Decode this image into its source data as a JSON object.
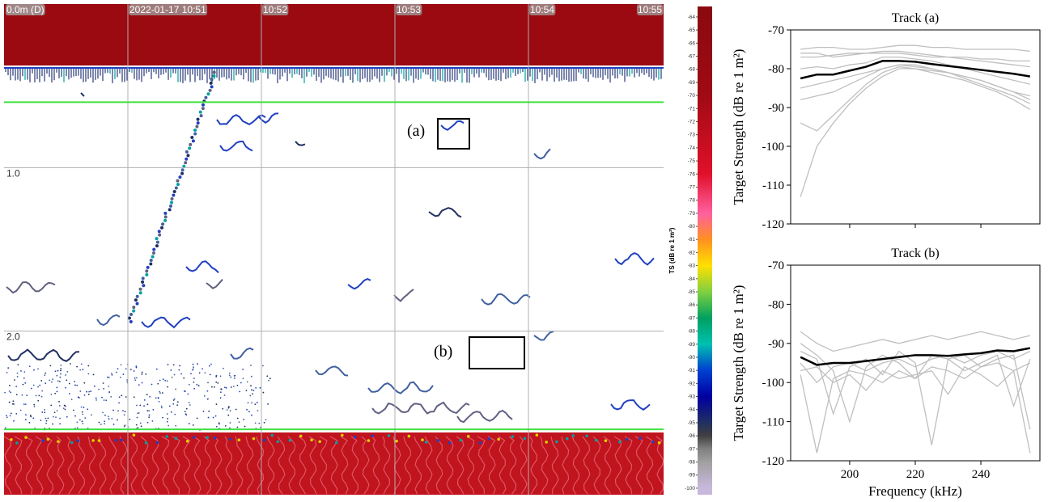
{
  "chart_data": [
    {
      "type": "echogram",
      "depth_ticks": [
        {
          "value": 0,
          "label": "0.0m (D)"
        },
        {
          "value": 1,
          "label": "1.0"
        },
        {
          "value": 2,
          "label": "2.0"
        }
      ],
      "ylim": [
        0,
        3
      ],
      "time_labels": [
        "2022-01-17 10:51",
        "10:52",
        "10:53",
        "10:54",
        "10:55"
      ],
      "lines": [
        {
          "depth": 0.6,
          "color": "#3ee03e"
        },
        {
          "depth": 2.6,
          "color": "#3ee03e"
        }
      ],
      "annotations": [
        "(a)",
        "(b)"
      ],
      "colorbar": {
        "label": "TS (dB re 1 m²)",
        "lim": [
          -63.2,
          -100.5
        ],
        "ticks": [
          -64,
          -65,
          -66,
          -67,
          -68,
          -69,
          -70,
          -71,
          -72,
          -73,
          -74,
          -75,
          -76,
          -77,
          -78,
          -79,
          -80,
          -81,
          -82,
          -83,
          -84,
          -85,
          -86,
          -87,
          -88,
          -89,
          -90,
          -91,
          -92,
          -93,
          -94,
          -95,
          -96,
          -97,
          -98,
          -99,
          -100
        ],
        "colors": [
          {
            "value": -64,
            "color": "#8b0a10"
          },
          {
            "value": -70,
            "color": "#a00a14"
          },
          {
            "value": -76,
            "color": "#e0102a"
          },
          {
            "value": -79,
            "color": "#ff60a0"
          },
          {
            "value": -81,
            "color": "#ff9020"
          },
          {
            "value": -83,
            "color": "#ffe000"
          },
          {
            "value": -85,
            "color": "#80d040"
          },
          {
            "value": -87,
            "color": "#00a060"
          },
          {
            "value": -89,
            "color": "#00c0b0"
          },
          {
            "value": -91,
            "color": "#0040d0"
          },
          {
            "value": -93,
            "color": "#0000a0"
          },
          {
            "value": -95,
            "color": "#203060"
          },
          {
            "value": -96,
            "color": "#404040"
          },
          {
            "value": -97,
            "color": "#808080"
          },
          {
            "value": -98,
            "color": "#a0a0a0"
          },
          {
            "value": -100,
            "color": "#c8b8dc"
          }
        ]
      }
    },
    {
      "type": "line",
      "title": "Track (a)",
      "ylabel": "Target Strength (dB re 1 m²)",
      "x": [
        185,
        190,
        195,
        200,
        205,
        210,
        215,
        220,
        225,
        230,
        235,
        240,
        245,
        250,
        255
      ],
      "xlim": [
        182,
        258
      ],
      "xticks": [
        200,
        220,
        240
      ],
      "xtick_labels": false,
      "ylim": [
        -120,
        -70
      ],
      "yticks": [
        -70,
        -80,
        -90,
        -100,
        -110,
        -120
      ],
      "series": [
        {
          "color": "#bfbfbf",
          "values": [
            -75,
            -74.5,
            -74.5,
            -75,
            -75,
            -74.5,
            -74,
            -74,
            -74.5,
            -74.5,
            -75,
            -75,
            -75,
            -75,
            -75.5
          ]
        },
        {
          "color": "#bfbfbf",
          "values": [
            -77,
            -77,
            -76.5,
            -76,
            -76,
            -75.5,
            -75.5,
            -76,
            -76.5,
            -77,
            -77.5,
            -78,
            -78.5,
            -79,
            -79.5
          ]
        },
        {
          "color": "#bfbfbf",
          "values": [
            -76,
            -76,
            -77,
            -76.5,
            -76,
            -76,
            -76,
            -76.5,
            -77,
            -77,
            -77,
            -77.5,
            -77.5,
            -78,
            -78
          ]
        },
        {
          "color": "#bfbfbf",
          "values": [
            -80,
            -79.5,
            -80,
            -79,
            -78.5,
            -77,
            -77,
            -77.5,
            -78,
            -79,
            -80,
            -81,
            -82,
            -83,
            -84
          ]
        },
        {
          "color": "#bfbfbf",
          "values": [
            -85,
            -84,
            -83,
            -82,
            -81,
            -80,
            -79,
            -79.5,
            -80,
            -81,
            -82,
            -83,
            -84.5,
            -86,
            -87
          ]
        },
        {
          "color": "#bfbfbf",
          "values": [
            -88,
            -87,
            -86,
            -84,
            -82,
            -80,
            -79,
            -79,
            -80,
            -81,
            -82.5,
            -84,
            -85.5,
            -87,
            -89
          ]
        },
        {
          "color": "#bfbfbf",
          "values": [
            -113,
            -100,
            -94,
            -89,
            -85,
            -82,
            -80,
            -80,
            -80.5,
            -81,
            -82,
            -83,
            -84.5,
            -86,
            -88
          ]
        },
        {
          "color": "#bfbfbf",
          "values": [
            -94,
            -96,
            -92,
            -88,
            -84,
            -81,
            -79.5,
            -80,
            -81,
            -82,
            -83,
            -84.5,
            -86,
            -88,
            -90.5
          ]
        },
        {
          "color": "#000000",
          "values": [
            -82.5,
            -81.5,
            -81.5,
            -80.5,
            -79.5,
            -78,
            -78,
            -78.2,
            -78.8,
            -79.3,
            -79.8,
            -80.3,
            -80.8,
            -81.3,
            -82
          ]
        }
      ]
    },
    {
      "type": "line",
      "title": "Track (b)",
      "ylabel": "Target Strength (dB re 1 m²)",
      "xlabel": "Frequency (kHz)",
      "x": [
        185,
        190,
        195,
        200,
        205,
        210,
        215,
        220,
        225,
        230,
        235,
        240,
        245,
        250,
        255
      ],
      "xlim": [
        182,
        258
      ],
      "xticks": [
        200,
        220,
        240
      ],
      "ylim": [
        -120,
        -70
      ],
      "yticks": [
        -70,
        -80,
        -90,
        -100,
        -110,
        -120
      ],
      "series": [
        {
          "color": "#bfbfbf",
          "values": [
            -87,
            -90,
            -92,
            -91,
            -90,
            -89,
            -90,
            -89,
            -88,
            -89,
            -88,
            -87,
            -88,
            -89,
            -88
          ]
        },
        {
          "color": "#bfbfbf",
          "values": [
            -95,
            -100,
            -96,
            -95,
            -97,
            -95,
            -94,
            -96,
            -94,
            -93,
            -95,
            -93,
            -92,
            -94,
            -92
          ]
        },
        {
          "color": "#bfbfbf",
          "values": [
            -98,
            -118,
            -99,
            -97,
            -98,
            -100,
            -97,
            -99,
            -96,
            -97,
            -99,
            -96,
            -95,
            -97,
            -95
          ]
        },
        {
          "color": "#bfbfbf",
          "values": [
            -92,
            -94,
            -108,
            -96,
            -94,
            -98,
            -92,
            -95,
            -116,
            -94,
            -93,
            -96,
            -94,
            -93,
            -112
          ]
        },
        {
          "color": "#bfbfbf",
          "values": [
            -90,
            -93,
            -97,
            -110,
            -96,
            -93,
            -95,
            -99,
            -93,
            -94,
            -97,
            -95,
            -93,
            -106,
            -94
          ]
        },
        {
          "color": "#bfbfbf",
          "values": [
            -97,
            -96,
            -100,
            -98,
            -102,
            -97,
            -99,
            -98,
            -97,
            -103,
            -96,
            -98,
            -101,
            -97,
            -118
          ]
        },
        {
          "color": "#000000",
          "values": [
            -93.5,
            -95.5,
            -95,
            -95,
            -94.5,
            -94,
            -93.5,
            -93,
            -93,
            -93.2,
            -92.8,
            -92.5,
            -91.8,
            -92,
            -91.2
          ]
        }
      ]
    }
  ]
}
